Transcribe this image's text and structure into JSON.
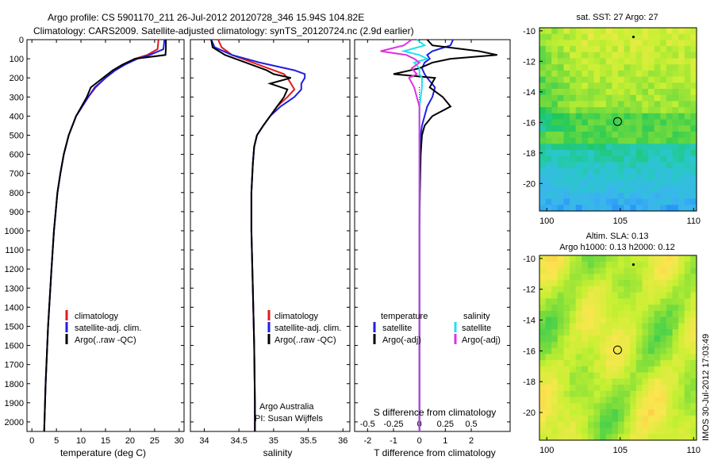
{
  "header": {
    "line1": "Argo profile: CS 5901170_211 26-Jul-2012 20120728_346 15.94S 104.82E",
    "line2": "Climatology: CARS2009. Satellite-adjusted climatology: synTS_20120724.nc (2.9d earlier)"
  },
  "colors": {
    "climatology": "#e41a1c",
    "satellite": "#1f1fe0",
    "argo": "#000000",
    "sat_salinity": "#22e0f0",
    "argo_salinity_adj": "#e030e0"
  },
  "depth_axis": {
    "min": 0,
    "max": 2050,
    "ticks": [
      "0",
      "100",
      "200",
      "300",
      "400",
      "500",
      "600",
      "700",
      "800",
      "900",
      "1000",
      "1100",
      "1200",
      "1300",
      "1400",
      "1500",
      "1600",
      "1700",
      "1800",
      "1900",
      "2000"
    ]
  },
  "chart_data": [
    {
      "type": "line",
      "name": "temperature-profile",
      "xlabel": "temperature (deg C)",
      "xlim": [
        -1,
        31
      ],
      "xticks": [
        "0",
        "5",
        "10",
        "15",
        "20",
        "25",
        "30"
      ],
      "depth": [
        0,
        50,
        80,
        100,
        130,
        160,
        200,
        250,
        300,
        400,
        500,
        600,
        700,
        800,
        1000,
        1200,
        1500,
        1800,
        2050
      ],
      "series": [
        {
          "name": "climatology",
          "values": [
            25.8,
            25.6,
            23.5,
            21.0,
            19.0,
            17.0,
            15.0,
            13.0,
            11.5,
            9.0,
            7.5,
            6.5,
            5.8,
            5.2,
            4.5,
            4.0,
            3.3,
            2.8,
            2.5
          ]
        },
        {
          "name": "satellite-adj. clim.",
          "values": [
            27.0,
            26.8,
            24.0,
            21.5,
            19.0,
            17.0,
            15.0,
            12.8,
            11.5,
            9.0,
            7.5,
            6.5,
            5.8,
            5.2,
            4.5,
            4.0,
            3.3,
            2.8,
            2.5
          ]
        },
        {
          "name": "Argo(..raw -QC)",
          "values": [
            27.3,
            27.3,
            27.2,
            21.0,
            18.5,
            16.5,
            14.5,
            12.0,
            11.2,
            9.0,
            7.5,
            6.5,
            5.8,
            5.2,
            4.5,
            4.0,
            3.3,
            2.8,
            2.5
          ]
        }
      ],
      "legend": [
        "climatology",
        "satellite-adj. clim.",
        "Argo(..raw -QC)"
      ]
    },
    {
      "type": "line",
      "name": "salinity-profile",
      "xlabel": "salinity",
      "xlim": [
        33.8,
        36.1
      ],
      "xticks": [
        "34",
        "34.5",
        "35",
        "35.5",
        "36"
      ],
      "depth": [
        0,
        40,
        80,
        120,
        160,
        180,
        200,
        230,
        260,
        300,
        350,
        400,
        450,
        500,
        560,
        650,
        800,
        1000,
        1300,
        1600,
        1900,
        2050
      ],
      "series": [
        {
          "name": "climatology",
          "values": [
            34.2,
            34.25,
            34.4,
            34.7,
            35.0,
            35.15,
            35.2,
            35.25,
            35.3,
            35.2,
            35.05,
            34.95,
            34.85,
            34.76,
            34.72,
            34.7,
            34.68,
            34.68,
            34.7,
            34.72,
            34.73,
            34.73
          ]
        },
        {
          "name": "satellite-adj. clim.",
          "values": [
            34.1,
            34.15,
            34.4,
            34.8,
            35.3,
            35.45,
            35.45,
            35.4,
            35.4,
            35.3,
            35.1,
            34.95,
            34.85,
            34.76,
            34.72,
            34.7,
            34.68,
            34.68,
            34.7,
            34.72,
            34.73,
            34.73
          ]
        },
        {
          "name": "Argo(..raw -QC)",
          "values": [
            34.1,
            34.12,
            34.3,
            34.6,
            34.9,
            35.0,
            35.25,
            34.95,
            35.2,
            35.15,
            35.05,
            34.95,
            34.85,
            34.76,
            34.72,
            34.7,
            34.68,
            34.68,
            34.7,
            34.72,
            34.73,
            34.73
          ]
        }
      ],
      "legend": [
        "climatology",
        "satellite-adj. clim.",
        "Argo(..raw -QC)"
      ],
      "credit": [
        "Argo Australia",
        "PI: Susan Wijffels"
      ]
    },
    {
      "type": "line",
      "name": "difference-profile",
      "xlabel": "T difference from climatology",
      "xlabel_top": "S difference from climatology",
      "xlim": [
        -2.5,
        3.5
      ],
      "xticks": [
        "-2",
        "-1",
        "0",
        "1",
        "2"
      ],
      "sticks": [
        "-0.5",
        "-0.25",
        "0",
        "0.25",
        "0.5"
      ],
      "depth": [
        0,
        30,
        60,
        80,
        100,
        120,
        150,
        180,
        200,
        250,
        300,
        350,
        400,
        450,
        500,
        600,
        800,
        1000,
        1500,
        2050
      ],
      "series": [
        {
          "name": "temperature satellite",
          "values": [
            1.3,
            1.2,
            0.5,
            0.3,
            0.4,
            0.2,
            0.1,
            0.2,
            0.3,
            0.6,
            0.5,
            0.3,
            0.2,
            0.1,
            0.05,
            0.02,
            0.01,
            0.0,
            0.0,
            0.0
          ]
        },
        {
          "name": "temperature Argo(-adj)",
          "values": [
            0.3,
            0.5,
            2.3,
            3.0,
            1.2,
            0.5,
            0.0,
            -1.0,
            0.6,
            0.4,
            0.9,
            1.2,
            0.5,
            0.2,
            0.1,
            0.05,
            0.02,
            0.0,
            0.0,
            0.0
          ]
        },
        {
          "name": "salinity satellite",
          "values": [
            -0.1,
            0.2,
            -0.6,
            0.0,
            0.3,
            -0.2,
            0.0,
            0.0,
            0.1,
            0.1,
            0.05,
            0.0,
            0.0,
            0.0,
            0.0,
            0.0,
            0.0,
            0.0,
            0.0,
            0.0
          ]
        },
        {
          "name": "salinity Argo(-adj)",
          "values": [
            -0.3,
            -0.6,
            -1.5,
            -0.5,
            -0.2,
            0.0,
            -0.3,
            -0.1,
            -0.4,
            -0.2,
            -0.1,
            0.0,
            0.0,
            0.0,
            0.0,
            0.0,
            0.0,
            0.0,
            0.0,
            0.0
          ]
        }
      ],
      "legend_temp": {
        "title": "temperature",
        "items": [
          "satellite",
          "Argo(-adj)"
        ]
      },
      "legend_sal": {
        "title": "salinity",
        "items": [
          "satellite",
          "Argo(-adj)"
        ]
      }
    },
    {
      "type": "heatmap",
      "name": "sst-map",
      "title": "sat. SST: 27 Argo: 27",
      "xticks": [
        "100",
        "105",
        "110"
      ],
      "yticks": [
        "-10",
        "-12",
        "-14",
        "-16",
        "-18",
        "-20"
      ],
      "xlim": [
        99.5,
        110.2
      ],
      "ylim": [
        -21.8,
        -9.8
      ],
      "marker": {
        "lon": 104.82,
        "lat": -15.94
      }
    },
    {
      "type": "heatmap",
      "name": "sla-map",
      "title": "Altim. SLA: 0.13",
      "subtitle": "Argo h1000: 0.13 h2000: 0.12",
      "xticks": [
        "100",
        "105",
        "110"
      ],
      "yticks": [
        "-10",
        "-12",
        "-14",
        "-16",
        "-18",
        "-20"
      ],
      "xlim": [
        99.5,
        110.2
      ],
      "ylim": [
        -21.8,
        -9.8
      ],
      "marker": {
        "lon": 104.82,
        "lat": -15.94
      }
    }
  ],
  "footer": {
    "stamp": "IMOS 30-Jul-2012 17:03:49"
  }
}
